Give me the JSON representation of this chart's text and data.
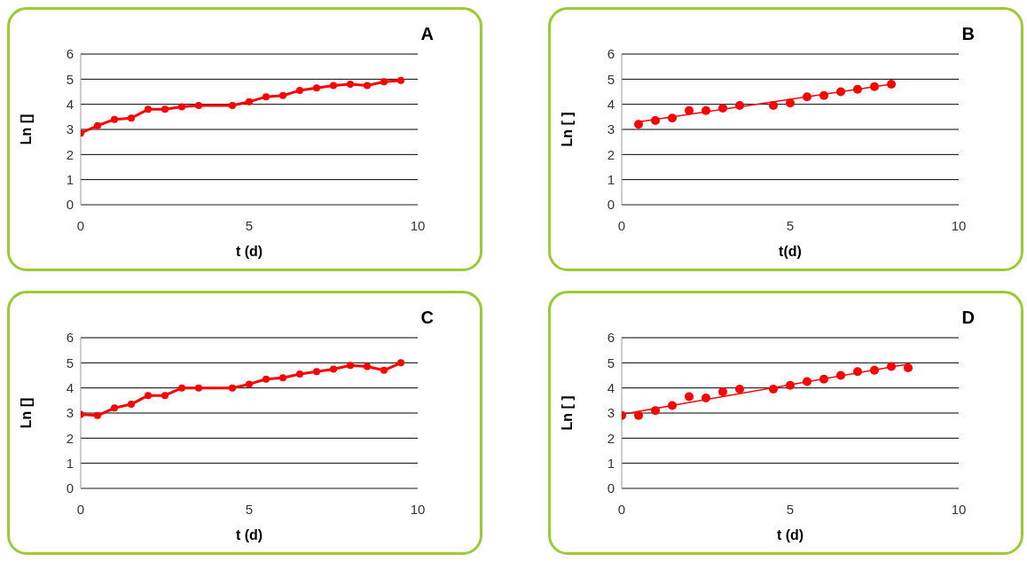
{
  "chart_data": [
    {
      "type": "line",
      "title": "A",
      "xlabel": "t (d)",
      "ylabel": "Ln []",
      "xlim": [
        0,
        10
      ],
      "xticks": [
        0,
        5,
        10
      ],
      "ylim": [
        0,
        6
      ],
      "yticks": [
        0,
        1,
        2,
        3,
        4,
        5,
        6
      ],
      "grid": "y",
      "marker": "circle",
      "series": [
        {
          "color": "#ff0000",
          "x": [
            0,
            0.5,
            1,
            1.5,
            2,
            2.5,
            3,
            3.5,
            4.5,
            5,
            5.5,
            6,
            6.5,
            7,
            7.5,
            8,
            8.5,
            9,
            9.5
          ],
          "values": [
            2.85,
            3.15,
            3.4,
            3.45,
            3.8,
            3.8,
            3.9,
            3.95,
            3.95,
            4.1,
            4.3,
            4.35,
            4.55,
            4.65,
            4.75,
            4.8,
            4.75,
            4.9,
            4.95
          ]
        }
      ]
    },
    {
      "type": "scatter",
      "title": "B",
      "xlabel": "t(d)",
      "ylabel": "Ln [ ]",
      "xlim": [
        0,
        10
      ],
      "xticks": [
        0,
        5,
        10
      ],
      "ylim": [
        0,
        6
      ],
      "yticks": [
        0,
        1,
        2,
        3,
        4,
        5,
        6
      ],
      "grid": "y",
      "marker": "circle",
      "series": [
        {
          "color": "#ff0000",
          "x": [
            0.5,
            1,
            1.5,
            2,
            2.5,
            3,
            3.5,
            4.5,
            5,
            5.5,
            6,
            6.5,
            7,
            7.5,
            8
          ],
          "values": [
            3.2,
            3.35,
            3.45,
            3.75,
            3.75,
            3.85,
            3.95,
            3.95,
            4.05,
            4.3,
            4.35,
            4.5,
            4.6,
            4.7,
            4.8
          ]
        },
        {
          "type": "line",
          "marker": "none",
          "color": "#ff0000",
          "x": [
            0.5,
            8
          ],
          "values": [
            3.3,
            4.8
          ]
        }
      ]
    },
    {
      "type": "line",
      "title": "C",
      "xlabel": "t (d)",
      "ylabel": "Ln []",
      "xlim": [
        0,
        10
      ],
      "xticks": [
        0,
        5,
        10
      ],
      "ylim": [
        0,
        6
      ],
      "yticks": [
        0,
        1,
        2,
        3,
        4,
        5,
        6
      ],
      "grid": "y",
      "marker": "circle",
      "series": [
        {
          "color": "#ff0000",
          "x": [
            0,
            0.5,
            1,
            1.5,
            2,
            2.5,
            3,
            3.5,
            4.5,
            5,
            5.5,
            6,
            6.5,
            7,
            7.5,
            8,
            8.5,
            9,
            9.5
          ],
          "values": [
            2.95,
            2.9,
            3.2,
            3.35,
            3.7,
            3.7,
            4,
            4,
            4,
            4.15,
            4.35,
            4.4,
            4.55,
            4.65,
            4.75,
            4.9,
            4.85,
            4.7,
            5
          ]
        }
      ]
    },
    {
      "type": "scatter",
      "title": "D",
      "xlabel": "t (d)",
      "ylabel": "Ln [ ]",
      "xlim": [
        0,
        10
      ],
      "xticks": [
        0,
        5,
        10
      ],
      "ylim": [
        0,
        6
      ],
      "yticks": [
        0,
        1,
        2,
        3,
        4,
        5,
        6
      ],
      "grid": "y",
      "marker": "circle",
      "series": [
        {
          "color": "#ff0000",
          "x": [
            0,
            0.5,
            1,
            1.5,
            2,
            2.5,
            3,
            3.5,
            4.5,
            5,
            5.5,
            6,
            6.5,
            7,
            7.5,
            8,
            8.5
          ],
          "values": [
            2.9,
            2.9,
            3.1,
            3.3,
            3.65,
            3.6,
            3.85,
            3.95,
            3.95,
            4.1,
            4.25,
            4.35,
            4.5,
            4.65,
            4.7,
            4.85,
            4.8
          ]
        },
        {
          "type": "line",
          "marker": "none",
          "color": "#ff0000",
          "x": [
            0,
            8.5
          ],
          "values": [
            2.95,
            4.95
          ]
        }
      ]
    }
  ]
}
